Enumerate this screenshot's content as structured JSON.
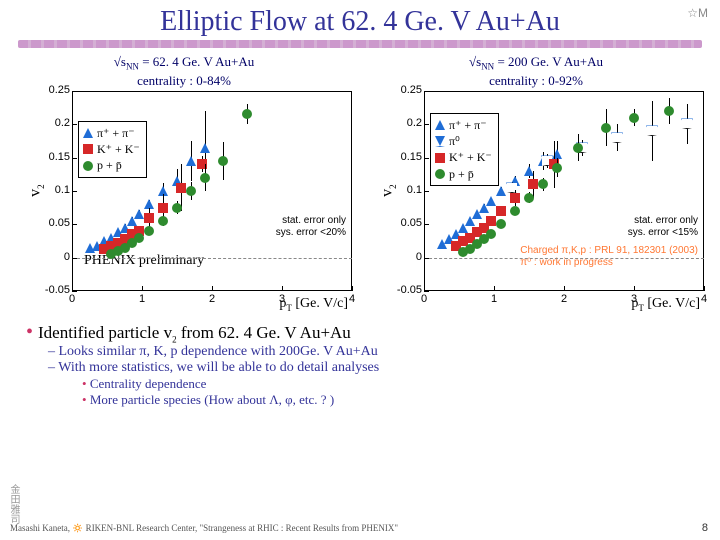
{
  "title": "Elliptic Flow at 62. 4 Ge. V Au+Au",
  "logo_text": "☆M",
  "left_chart": {
    "title_line1_pre": "√s",
    "title_line1_sub": "NN",
    "title_line1_post": " = 62. 4 Ge. V Au+Au",
    "title_line2": "centrality : 0-84%",
    "ylabel": "v",
    "ylabel_sub": "2",
    "xlabel_pre": "p",
    "xlabel_sub": "T",
    "xlabel_post": " [Ge. V/c]",
    "xlim": [
      0,
      4
    ],
    "ylim": [
      -0.05,
      0.25
    ],
    "yticks": [
      -0.05,
      0,
      0.05,
      0.1,
      0.15,
      0.2,
      0.25
    ],
    "xticks": [
      0,
      1,
      2,
      3,
      4
    ],
    "legend": [
      {
        "marker": "tri-up",
        "color": "#1f6dd6",
        "label": "π⁺ + π⁻"
      },
      {
        "marker": "sq",
        "color": "#d62728",
        "label": "K⁺ + K⁻"
      },
      {
        "marker": "circ",
        "color": "#2e8b2e",
        "label": "p + p̄"
      }
    ],
    "series": [
      {
        "marker": "tri-up",
        "color": "#1f6dd6",
        "x": [
          0.25,
          0.35,
          0.45,
          0.55,
          0.65,
          0.75,
          0.85,
          0.95,
          1.1,
          1.3,
          1.5,
          1.7,
          1.9
        ],
        "y": [
          0.015,
          0.018,
          0.025,
          0.03,
          0.038,
          0.045,
          0.055,
          0.065,
          0.08,
          0.1,
          0.115,
          0.145,
          0.165
        ],
        "err": [
          0.003,
          0.003,
          0.003,
          0.004,
          0.004,
          0.005,
          0.006,
          0.007,
          0.006,
          0.012,
          0.018,
          0.03,
          0.055
        ]
      },
      {
        "marker": "sq",
        "color": "#d62728",
        "x": [
          0.45,
          0.55,
          0.65,
          0.75,
          0.85,
          0.95,
          1.1,
          1.3,
          1.55,
          1.85
        ],
        "y": [
          0.013,
          0.017,
          0.022,
          0.028,
          0.035,
          0.04,
          0.06,
          0.075,
          0.105,
          0.14
        ],
        "err": [
          0.004,
          0.004,
          0.005,
          0.005,
          0.006,
          0.007,
          0.014,
          0.02,
          0.035,
          0.012
        ]
      },
      {
        "marker": "circ",
        "color": "#2e8b2e",
        "x": [
          0.55,
          0.65,
          0.75,
          0.85,
          0.95,
          1.1,
          1.3,
          1.5,
          1.7,
          1.9,
          2.15,
          2.5
        ],
        "y": [
          0.006,
          0.01,
          0.015,
          0.022,
          0.03,
          0.04,
          0.055,
          0.075,
          0.1,
          0.12,
          0.145,
          0.215
        ],
        "err": [
          0.003,
          0.003,
          0.003,
          0.004,
          0.004,
          0.005,
          0.007,
          0.01,
          0.014,
          0.02,
          0.028,
          0.015
        ]
      }
    ],
    "stat_note_l1": "stat. error only",
    "stat_note_l2": "sys. error <20%",
    "phenix_label": "PHENIX preliminary"
  },
  "right_chart": {
    "title_line1_pre": "√s",
    "title_line1_sub": "NN",
    "title_line1_post": " = 200 Ge. V Au+Au",
    "title_line2": "centrality : 0-92%",
    "xlim": [
      0,
      4
    ],
    "ylim": [
      -0.05,
      0.25
    ],
    "yticks": [
      -0.05,
      0,
      0.05,
      0.1,
      0.15,
      0.2,
      0.25
    ],
    "xticks": [
      0,
      1,
      2,
      3,
      4
    ],
    "legend": [
      {
        "marker": "tri-up",
        "color": "#1f6dd6",
        "label": "π⁺ + π⁻"
      },
      {
        "marker": "tri-down",
        "color": "#1f6dd6",
        "open": true,
        "label": "π⁰"
      },
      {
        "marker": "sq",
        "color": "#d62728",
        "label": "K⁺ + K⁻"
      },
      {
        "marker": "circ",
        "color": "#2e8b2e",
        "label": "p + p̄"
      }
    ],
    "series": [
      {
        "marker": "tri-up",
        "color": "#1f6dd6",
        "x": [
          0.25,
          0.35,
          0.45,
          0.55,
          0.65,
          0.75,
          0.85,
          0.95,
          1.1,
          1.3,
          1.5,
          1.7,
          1.9
        ],
        "y": [
          0.02,
          0.028,
          0.035,
          0.045,
          0.055,
          0.065,
          0.075,
          0.085,
          0.1,
          0.115,
          0.13,
          0.145,
          0.155
        ],
        "err": [
          0.003,
          0.003,
          0.003,
          0.003,
          0.004,
          0.004,
          0.005,
          0.005,
          0.006,
          0.007,
          0.01,
          0.014,
          0.02
        ]
      },
      {
        "marker": "tri-down",
        "color": "#1f6dd6",
        "open": true,
        "x": [
          1.25,
          1.75,
          2.25,
          2.75,
          3.25,
          3.75
        ],
        "y": [
          0.105,
          0.145,
          0.165,
          0.18,
          0.19,
          0.2
        ],
        "err": [
          0.008,
          0.01,
          0.012,
          0.02,
          0.045,
          0.03
        ]
      },
      {
        "marker": "sq",
        "color": "#d62728",
        "x": [
          0.45,
          0.55,
          0.65,
          0.75,
          0.85,
          0.95,
          1.1,
          1.3,
          1.55,
          1.85
        ],
        "y": [
          0.018,
          0.025,
          0.03,
          0.038,
          0.045,
          0.055,
          0.07,
          0.09,
          0.11,
          0.14
        ],
        "err": [
          0.003,
          0.003,
          0.004,
          0.004,
          0.005,
          0.006,
          0.008,
          0.012,
          0.02,
          0.035
        ]
      },
      {
        "marker": "circ",
        "color": "#2e8b2e",
        "x": [
          0.55,
          0.65,
          0.75,
          0.85,
          0.95,
          1.1,
          1.3,
          1.5,
          1.7,
          1.9,
          2.2,
          2.6,
          3.0,
          3.5
        ],
        "y": [
          0.008,
          0.013,
          0.02,
          0.028,
          0.035,
          0.05,
          0.07,
          0.09,
          0.11,
          0.135,
          0.165,
          0.195,
          0.21,
          0.22
        ],
        "err": [
          0.003,
          0.003,
          0.003,
          0.004,
          0.004,
          0.005,
          0.006,
          0.008,
          0.01,
          0.014,
          0.02,
          0.028,
          0.013,
          0.02
        ]
      }
    ],
    "stat_note_l1": "stat. error only",
    "stat_note_l2": "sys. error <15%",
    "ref_l1": "Charged π,K,p : PRL 91, 182301 (2003)",
    "ref_l2": "π⁰ : work in progress",
    "ref_color": "#ff7733"
  },
  "bullets": {
    "main_pre": "Identified particle v",
    "main_sub": "2",
    "main_post": " from 62. 4 Ge. V Au+Au",
    "sub1": "Looks similar π, K, p dependence with 200Ge. V Au+Au",
    "sub2": "With more statistics, we will be able to do detail analyses",
    "sub2a": "Centrality dependence",
    "sub2b": "More particle species (How about Λ, φ, etc. ? )"
  },
  "footer": "Masashi Kaneta, 🔅 RIKEN-BNL Research Center,   \"Strangeness at RHIC : Recent Results from PHENIX\"",
  "cjk": "金田雅司",
  "page": "8",
  "colors": {
    "title": "#333399",
    "pi": "#1f6dd6",
    "K": "#d62728",
    "p": "#2e8b2e"
  }
}
